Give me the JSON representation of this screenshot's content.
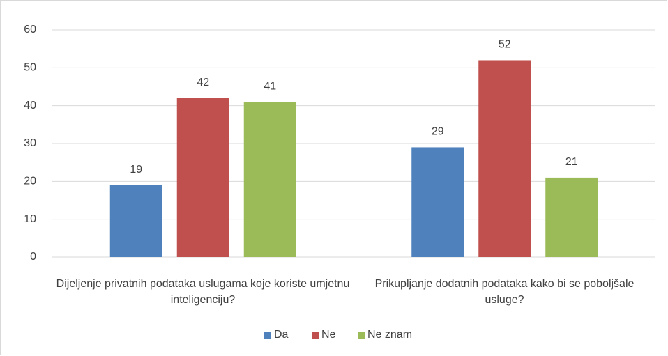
{
  "chart_data": {
    "type": "bar",
    "categories": [
      "Dijeljenje privatnih podataka uslugama koje koriste umjetnu inteligenciju?",
      "Prikupljanje dodatnih podataka kako bi se poboljšale usluge?"
    ],
    "series": [
      {
        "name": "Da",
        "color": "#4f81bd",
        "values": [
          19,
          29
        ]
      },
      {
        "name": "Ne",
        "color": "#c0504d",
        "values": [
          42,
          52
        ]
      },
      {
        "name": "Ne znam",
        "color": "#9bbb59",
        "values": [
          41,
          21
        ]
      }
    ],
    "ylim": [
      0,
      60
    ],
    "yticks": [
      0,
      10,
      20,
      30,
      40,
      50,
      60
    ],
    "grid": true,
    "legend": "bottom"
  }
}
